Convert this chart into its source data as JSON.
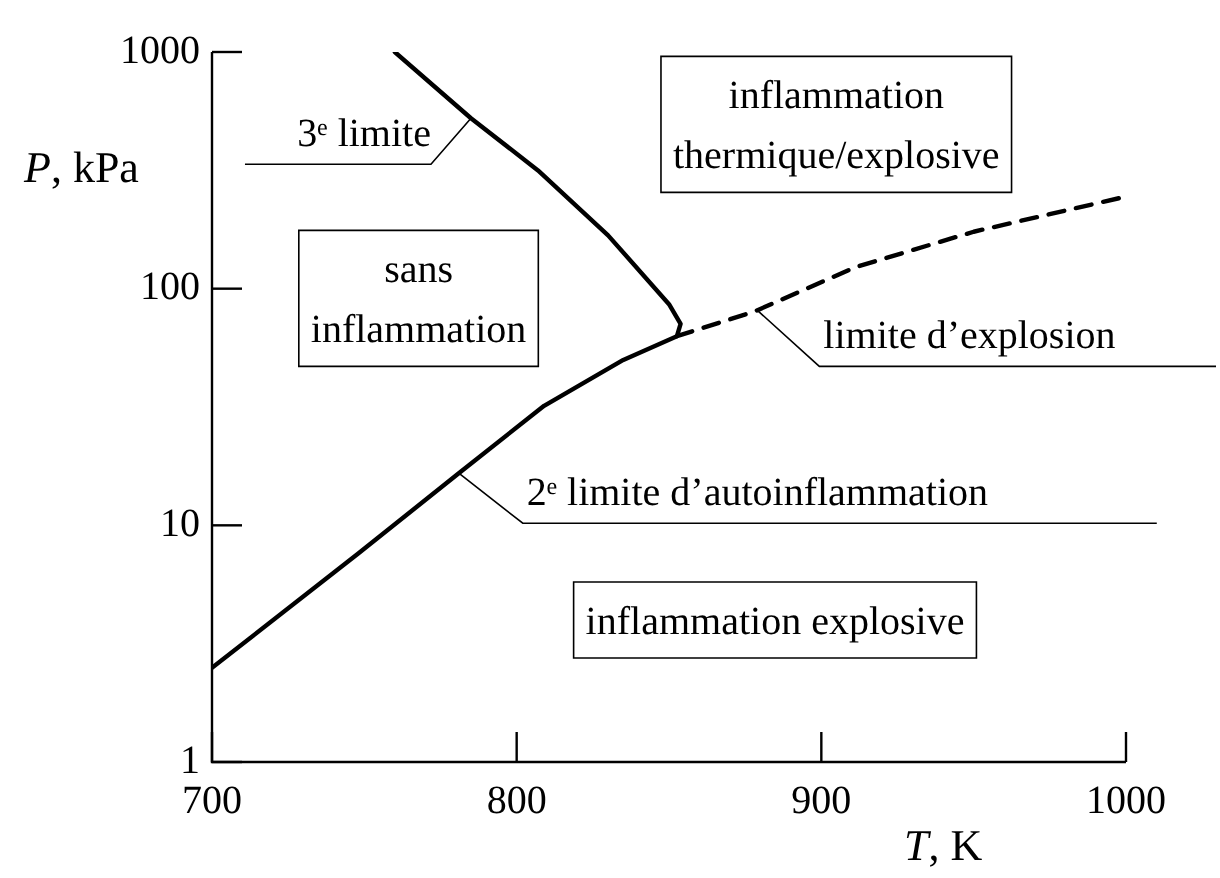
{
  "chart_data": {
    "type": "line",
    "xlabel": "T, K",
    "ylabel": "P, kPa",
    "xlim": [
      700,
      1000
    ],
    "xticks": [
      700,
      800,
      900,
      1000
    ],
    "ylim": [
      1,
      1000
    ],
    "yticks": [
      1,
      10,
      100,
      1000
    ],
    "log": "y",
    "grid": false,
    "legend": false,
    "marker": "none",
    "series": [
      {
        "color": "#000000",
        "line_style": "solid",
        "x": [
          700,
          748,
          781,
          809,
          835,
          852.6,
          853.8,
          850,
          830,
          807,
          785,
          760
        ],
        "values": [
          2.5,
          7.6,
          16.6,
          32,
          50,
          63,
          71,
          86,
          168,
          316,
          525,
          1000
        ]
      },
      {
        "color": "#000000",
        "line_style": "dashed",
        "x": [
          852.6,
          878,
          911,
          950,
          1000
        ],
        "values": [
          63,
          80,
          123,
          174,
          245
        ]
      }
    ],
    "annotations": [
      {
        "text": "3ᵉ limite",
        "x": 785,
        "y": 525
      },
      {
        "text": "limite d’explosion",
        "x": 879,
        "y": 81
      },
      {
        "text": "2ᵉ limite d’autoinflammation",
        "x": 781,
        "y": 16.6
      },
      "sans\ninflammation",
      "inflammation\nthermique/explosive",
      "inflammation explosive"
    ]
  }
}
